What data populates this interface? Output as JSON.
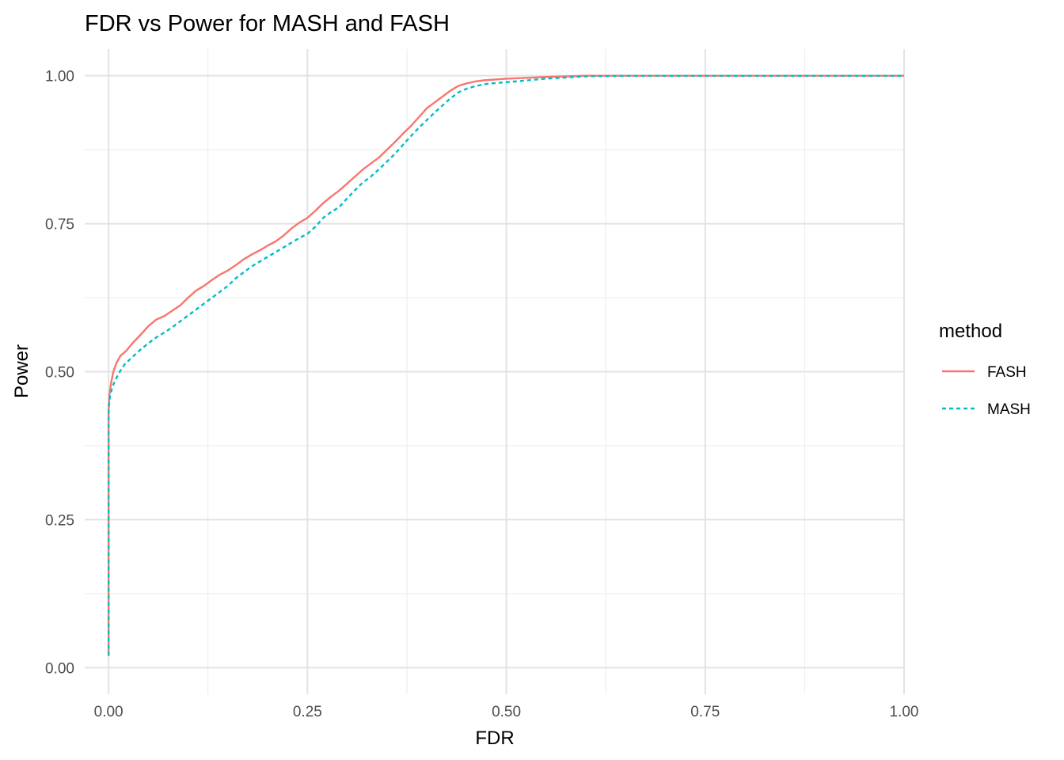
{
  "chart_data": {
    "type": "line",
    "title": "FDR vs Power for MASH and FASH",
    "xlabel": "FDR",
    "ylabel": "Power",
    "xlim": [
      -0.03,
      1.0
    ],
    "ylim": [
      -0.045,
      1.045
    ],
    "x_ticks": [
      0.0,
      0.25,
      0.5,
      0.75,
      1.0
    ],
    "x_tick_labels": [
      "0.00",
      "0.25",
      "0.50",
      "0.75",
      "1.00"
    ],
    "y_ticks": [
      0.0,
      0.25,
      0.5,
      0.75,
      1.0
    ],
    "y_tick_labels": [
      "0.00",
      "0.25",
      "0.50",
      "0.75",
      "1.00"
    ],
    "grid": true,
    "legend": {
      "title": "method",
      "position": "right"
    },
    "series": [
      {
        "name": "FASH",
        "color": "#F8766D",
        "line_style": "solid",
        "points": [
          [
            0.0,
            0.02
          ],
          [
            0.0,
            0.35
          ],
          [
            0.0,
            0.43
          ],
          [
            0.001,
            0.46
          ],
          [
            0.003,
            0.48
          ],
          [
            0.006,
            0.5
          ],
          [
            0.01,
            0.515
          ],
          [
            0.015,
            0.527
          ],
          [
            0.022,
            0.535
          ],
          [
            0.03,
            0.548
          ],
          [
            0.04,
            0.562
          ],
          [
            0.05,
            0.577
          ],
          [
            0.06,
            0.588
          ],
          [
            0.07,
            0.594
          ],
          [
            0.08,
            0.603
          ],
          [
            0.09,
            0.612
          ],
          [
            0.1,
            0.625
          ],
          [
            0.11,
            0.637
          ],
          [
            0.12,
            0.645
          ],
          [
            0.13,
            0.655
          ],
          [
            0.14,
            0.664
          ],
          [
            0.15,
            0.671
          ],
          [
            0.16,
            0.68
          ],
          [
            0.17,
            0.69
          ],
          [
            0.18,
            0.698
          ],
          [
            0.19,
            0.705
          ],
          [
            0.2,
            0.713
          ],
          [
            0.21,
            0.72
          ],
          [
            0.22,
            0.73
          ],
          [
            0.23,
            0.742
          ],
          [
            0.24,
            0.752
          ],
          [
            0.25,
            0.76
          ],
          [
            0.26,
            0.772
          ],
          [
            0.27,
            0.785
          ],
          [
            0.28,
            0.796
          ],
          [
            0.29,
            0.806
          ],
          [
            0.3,
            0.818
          ],
          [
            0.31,
            0.83
          ],
          [
            0.32,
            0.842
          ],
          [
            0.33,
            0.852
          ],
          [
            0.34,
            0.862
          ],
          [
            0.35,
            0.875
          ],
          [
            0.36,
            0.888
          ],
          [
            0.37,
            0.902
          ],
          [
            0.38,
            0.915
          ],
          [
            0.39,
            0.93
          ],
          [
            0.4,
            0.945
          ],
          [
            0.41,
            0.955
          ],
          [
            0.42,
            0.965
          ],
          [
            0.43,
            0.975
          ],
          [
            0.44,
            0.983
          ],
          [
            0.45,
            0.987
          ],
          [
            0.46,
            0.99
          ],
          [
            0.47,
            0.992
          ],
          [
            0.48,
            0.993
          ],
          [
            0.5,
            0.995
          ],
          [
            0.55,
            0.998
          ],
          [
            0.6,
            1.0
          ],
          [
            1.0,
            1.0
          ]
        ]
      },
      {
        "name": "MASH",
        "color": "#00BFC4",
        "line_style": "dashed",
        "points": [
          [
            0.0,
            0.02
          ],
          [
            0.0,
            0.35
          ],
          [
            0.0,
            0.44
          ],
          [
            0.002,
            0.46
          ],
          [
            0.005,
            0.475
          ],
          [
            0.01,
            0.49
          ],
          [
            0.015,
            0.502
          ],
          [
            0.02,
            0.512
          ],
          [
            0.03,
            0.525
          ],
          [
            0.04,
            0.537
          ],
          [
            0.05,
            0.548
          ],
          [
            0.06,
            0.558
          ],
          [
            0.07,
            0.566
          ],
          [
            0.08,
            0.575
          ],
          [
            0.09,
            0.585
          ],
          [
            0.1,
            0.595
          ],
          [
            0.11,
            0.605
          ],
          [
            0.12,
            0.615
          ],
          [
            0.13,
            0.625
          ],
          [
            0.14,
            0.635
          ],
          [
            0.15,
            0.645
          ],
          [
            0.16,
            0.658
          ],
          [
            0.17,
            0.668
          ],
          [
            0.18,
            0.678
          ],
          [
            0.19,
            0.686
          ],
          [
            0.2,
            0.694
          ],
          [
            0.21,
            0.702
          ],
          [
            0.22,
            0.71
          ],
          [
            0.23,
            0.718
          ],
          [
            0.24,
            0.726
          ],
          [
            0.25,
            0.733
          ],
          [
            0.26,
            0.745
          ],
          [
            0.27,
            0.76
          ],
          [
            0.28,
            0.77
          ],
          [
            0.29,
            0.778
          ],
          [
            0.3,
            0.793
          ],
          [
            0.31,
            0.807
          ],
          [
            0.32,
            0.82
          ],
          [
            0.33,
            0.83
          ],
          [
            0.34,
            0.842
          ],
          [
            0.35,
            0.855
          ],
          [
            0.36,
            0.868
          ],
          [
            0.37,
            0.883
          ],
          [
            0.38,
            0.898
          ],
          [
            0.39,
            0.912
          ],
          [
            0.4,
            0.925
          ],
          [
            0.41,
            0.938
          ],
          [
            0.42,
            0.95
          ],
          [
            0.43,
            0.962
          ],
          [
            0.44,
            0.972
          ],
          [
            0.45,
            0.978
          ],
          [
            0.46,
            0.982
          ],
          [
            0.47,
            0.985
          ],
          [
            0.48,
            0.987
          ],
          [
            0.5,
            0.989
          ],
          [
            0.55,
            0.995
          ],
          [
            0.6,
            0.999
          ],
          [
            0.65,
            1.0
          ],
          [
            1.0,
            1.0
          ]
        ]
      }
    ]
  }
}
